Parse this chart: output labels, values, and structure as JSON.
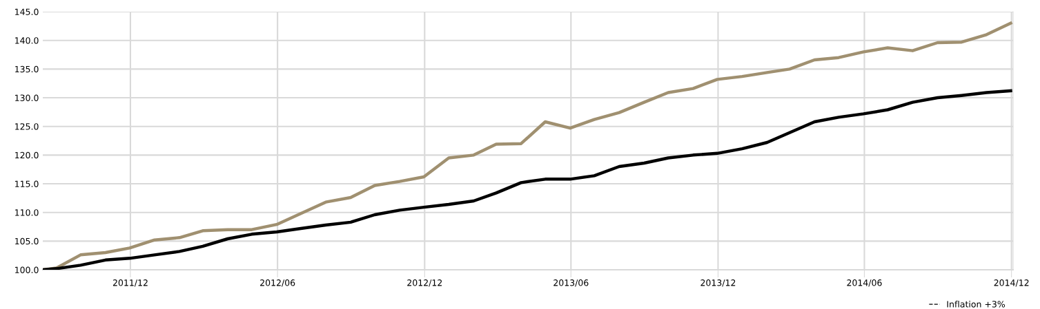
{
  "chart_data": {
    "type": "line",
    "x": [
      "2011-08-14",
      "2011-08-31",
      "2011-09-30",
      "2011-10-31",
      "2011-11-30",
      "2011-12-31",
      "2012-01-31",
      "2012-02-29",
      "2012-03-31",
      "2012-04-30",
      "2012-05-31",
      "2012-06-30",
      "2012-07-31",
      "2012-08-31",
      "2012-09-30",
      "2012-10-31",
      "2012-11-30",
      "2012-12-31",
      "2013-01-31",
      "2013-02-28",
      "2013-03-31",
      "2013-04-30",
      "2013-05-31",
      "2013-06-30",
      "2013-07-31",
      "2013-08-31",
      "2013-09-30",
      "2013-10-31",
      "2013-11-30",
      "2013-12-31",
      "2014-01-31",
      "2014-02-28",
      "2014-03-31",
      "2014-04-30",
      "2014-05-31",
      "2014-06-30",
      "2014-07-31",
      "2014-08-31",
      "2014-09-30",
      "2014-10-31",
      "2014-11-30"
    ],
    "series": [
      {
        "color": "#a09070",
        "values": [
          100.0,
          100.3,
          102.6,
          103.0,
          103.8,
          105.2,
          105.6,
          106.8,
          107.0,
          107.0,
          107.9,
          109.8,
          111.8,
          112.6,
          114.7,
          115.4,
          116.2,
          119.5,
          120.0,
          121.9,
          122.0,
          125.8,
          124.7,
          126.2,
          127.4,
          129.2,
          130.9,
          131.6,
          133.2,
          133.7,
          134.4,
          135.0,
          136.6,
          137.0,
          138.0,
          138.7,
          138.2,
          139.6,
          139.7,
          141.0,
          143.0
        ]
      },
      {
        "name": "Inflation +3%",
        "color": "#000000",
        "values": [
          100.0,
          100.2,
          100.8,
          101.7,
          102.0,
          102.6,
          103.2,
          104.1,
          105.4,
          106.2,
          106.6,
          107.2,
          107.8,
          108.3,
          109.6,
          110.4,
          110.9,
          111.4,
          112.0,
          113.4,
          115.2,
          115.8,
          115.8,
          116.4,
          118.0,
          118.6,
          119.5,
          120.0,
          120.3,
          121.1,
          122.2,
          123.9,
          125.8,
          126.6,
          127.2,
          127.9,
          129.2,
          130.0,
          130.4,
          130.9,
          131.2
        ]
      }
    ],
    "xlim": [
      "2011-08-14",
      "2014-12-03"
    ],
    "xticks": [
      {
        "value": "2011-12-01",
        "label": "2011/12"
      },
      {
        "value": "2012-06-01",
        "label": "2012/06"
      },
      {
        "value": "2012-12-01",
        "label": "2012/12"
      },
      {
        "value": "2013-06-01",
        "label": "2013/06"
      },
      {
        "value": "2013-12-01",
        "label": "2013/12"
      },
      {
        "value": "2014-06-01",
        "label": "2014/06"
      },
      {
        "value": "2014-12-01",
        "label": "2014/12"
      }
    ],
    "ylim": [
      100,
      145
    ],
    "yticks": [
      {
        "value": 100,
        "label": "100.0"
      },
      {
        "value": 105,
        "label": "105.0"
      },
      {
        "value": 110,
        "label": "110.0"
      },
      {
        "value": 115,
        "label": "115.0"
      },
      {
        "value": 120,
        "label": "120.0"
      },
      {
        "value": 125,
        "label": "125.0"
      },
      {
        "value": 130,
        "label": "130.0"
      },
      {
        "value": 135,
        "label": "135.0"
      },
      {
        "value": 140,
        "label": "140.0"
      },
      {
        "value": 145,
        "label": "145.0"
      }
    ],
    "grid": true,
    "legend": "bottom right",
    "marker": "none",
    "line_style": "solid"
  }
}
